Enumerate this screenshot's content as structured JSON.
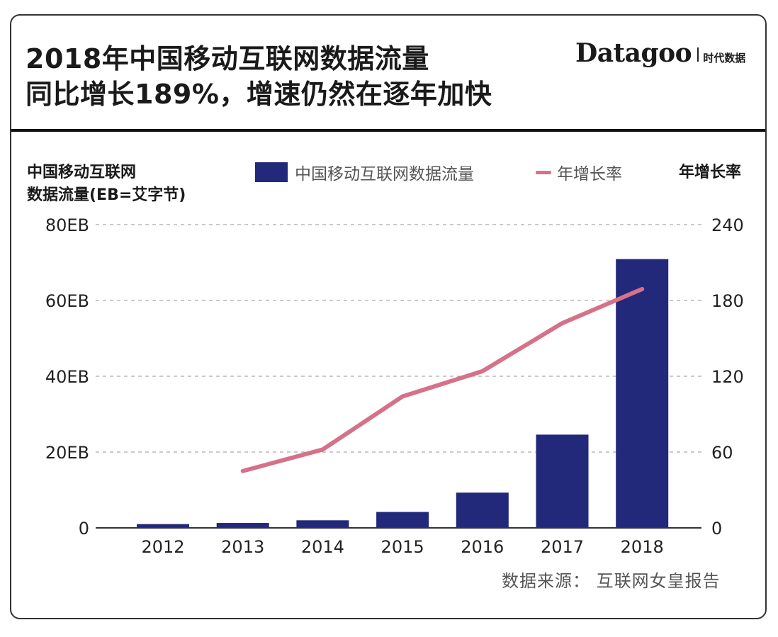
{
  "header": {
    "title_line1": "2018年中国移动互联网数据流量",
    "title_line2": "同比增长189%，增速仍然在逐年加快",
    "brand_name": "Datagoo",
    "brand_sub": "时代数据"
  },
  "axes": {
    "left_label_line1": "中国移动互联网",
    "left_label_line2": "数据流量(EB=艾字节)",
    "right_label": "年增长率"
  },
  "legend": {
    "bar_label": "中国移动互联网数据流量",
    "line_label": "年增长率"
  },
  "footer": {
    "source": "数据来源： 互联网女皇报告"
  },
  "colors": {
    "bar": "#22287a",
    "line": "#d6718a",
    "grid": "#aaaaaa",
    "axis": "#333333"
  },
  "chart_data": {
    "type": "bar",
    "title": "2018年中国移动互联网数据流量同比增长189%，增速仍然在逐年加快",
    "categories": [
      "2012",
      "2013",
      "2014",
      "2015",
      "2016",
      "2017",
      "2018"
    ],
    "series": [
      {
        "name": "中国移动互联网数据流量",
        "type": "bar",
        "axis": "left",
        "unit": "EB",
        "values": [
          1.0,
          1.3,
          2.0,
          4.2,
          9.3,
          24.6,
          70.9
        ]
      },
      {
        "name": "年增长率",
        "type": "line",
        "axis": "right",
        "values": [
          null,
          45,
          62,
          104,
          124,
          162,
          189
        ]
      }
    ],
    "ylim_left": [
      0,
      80
    ],
    "yticks_left": [
      0,
      20,
      40,
      60,
      80
    ],
    "ytick_labels_left": [
      "0",
      "20EB",
      "40EB",
      "60EB",
      "80EB"
    ],
    "ylim_right": [
      0,
      240
    ],
    "yticks_right": [
      0,
      60,
      120,
      180,
      240
    ],
    "ytick_labels_right": [
      "0",
      "60",
      "120",
      "180",
      "240"
    ],
    "grid": "dashed-horizontal",
    "legend_position": "top"
  }
}
